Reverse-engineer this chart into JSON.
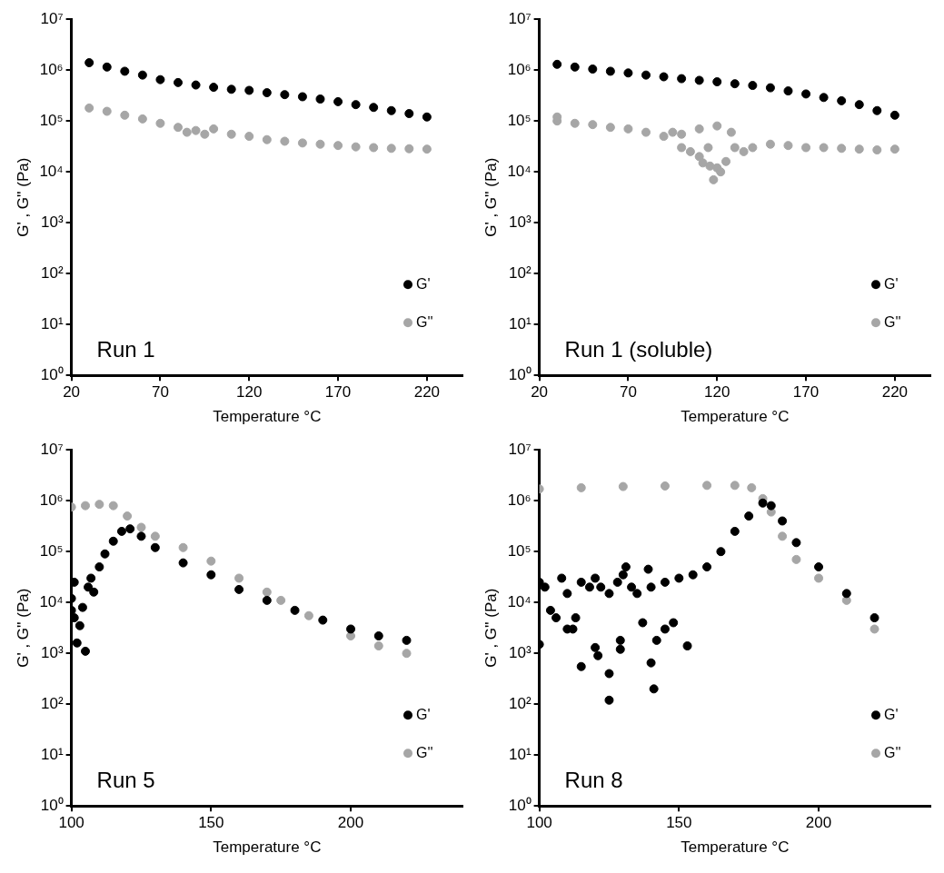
{
  "chart_data": [
    {
      "type": "scatter",
      "xlabel": "Temperature °C",
      "ylabel": "G' , G'' (Pa)",
      "annotations": [
        "Run 1"
      ],
      "log": "y",
      "legend": "bottom right",
      "marker": "circle",
      "xlim": [
        20,
        240
      ],
      "xticks": [
        20,
        70,
        120,
        170,
        220
      ],
      "ylim": [
        1,
        10000000
      ],
      "yticks": [
        {
          "value": 1,
          "label": "10⁰"
        },
        {
          "value": 10,
          "label": "10¹"
        },
        {
          "value": 100,
          "label": "10²"
        },
        {
          "value": 1000,
          "label": "10³"
        },
        {
          "value": 10000,
          "label": "10⁴"
        },
        {
          "value": 100000,
          "label": "10⁵"
        },
        {
          "value": 1000000,
          "label": "10⁶"
        },
        {
          "value": 10000000,
          "label": "10⁷"
        }
      ],
      "series": [
        {
          "name": "G'",
          "color": "#000000",
          "x": [
            30,
            40,
            50,
            60,
            70,
            80,
            90,
            100,
            110,
            120,
            130,
            140,
            150,
            160,
            170,
            180,
            190,
            200,
            210,
            220
          ],
          "values": [
            1400000,
            1150000,
            950000,
            800000,
            650000,
            570000,
            510000,
            460000,
            420000,
            400000,
            360000,
            330000,
            300000,
            270000,
            240000,
            210000,
            185000,
            160000,
            140000,
            120000
          ]
        },
        {
          "name": "G''",
          "color": "#a6a6a6",
          "x": [
            30,
            40,
            50,
            60,
            70,
            80,
            85,
            90,
            95,
            100,
            110,
            120,
            130,
            140,
            150,
            160,
            170,
            180,
            190,
            200,
            210,
            220
          ],
          "values": [
            180000,
            155000,
            130000,
            110000,
            90000,
            75000,
            60000,
            65000,
            55000,
            70000,
            55000,
            50000,
            43000,
            40000,
            37000,
            35000,
            33000,
            31000,
            30000,
            29000,
            28500,
            28000
          ]
        }
      ]
    },
    {
      "type": "scatter",
      "xlabel": "Temperature °C",
      "ylabel": "G' , G'' (Pa)",
      "annotations": [
        "Run 1 (soluble)"
      ],
      "log": "y",
      "legend": "bottom right",
      "marker": "circle",
      "xlim": [
        20,
        240
      ],
      "xticks": [
        20,
        70,
        120,
        170,
        220
      ],
      "ylim": [
        1,
        10000000
      ],
      "yticks": [
        {
          "value": 1,
          "label": "10⁰"
        },
        {
          "value": 10,
          "label": "10¹"
        },
        {
          "value": 100,
          "label": "10²"
        },
        {
          "value": 1000,
          "label": "10³"
        },
        {
          "value": 10000,
          "label": "10⁴"
        },
        {
          "value": 100000,
          "label": "10⁵"
        },
        {
          "value": 1000000,
          "label": "10⁶"
        },
        {
          "value": 10000000,
          "label": "10⁷"
        }
      ],
      "series": [
        {
          "name": "G'",
          "color": "#000000",
          "x": [
            30,
            40,
            50,
            60,
            70,
            80,
            90,
            100,
            110,
            120,
            130,
            140,
            150,
            160,
            170,
            180,
            190,
            200,
            210,
            220
          ],
          "values": [
            1300000,
            1150000,
            1050000,
            950000,
            880000,
            800000,
            740000,
            680000,
            630000,
            590000,
            540000,
            500000,
            450000,
            390000,
            340000,
            290000,
            250000,
            210000,
            160000,
            130000
          ]
        },
        {
          "name": "G''",
          "color": "#a6a6a6",
          "x": [
            30,
            30,
            40,
            50,
            60,
            70,
            80,
            90,
            95,
            100,
            100,
            105,
            110,
            110,
            112,
            115,
            116,
            118,
            120,
            120,
            122,
            125,
            128,
            130,
            135,
            140,
            150,
            160,
            170,
            180,
            190,
            200,
            210,
            220
          ],
          "values": [
            100000,
            120000,
            90000,
            85000,
            75000,
            70000,
            60000,
            50000,
            60000,
            30000,
            55000,
            25000,
            20000,
            70000,
            15000,
            30000,
            13000,
            7000,
            12000,
            80000,
            10000,
            16000,
            60000,
            30000,
            25000,
            30000,
            35000,
            33000,
            30000,
            30000,
            29000,
            28000,
            27000,
            28000
          ]
        }
      ]
    },
    {
      "type": "scatter",
      "xlabel": "Temperature °C",
      "ylabel": "G' , G'' (Pa)",
      "annotations": [
        "Run 5"
      ],
      "log": "y",
      "legend": "bottom right",
      "marker": "circle",
      "xlim": [
        100,
        240
      ],
      "xticks": [
        100,
        150,
        200
      ],
      "ylim": [
        1,
        10000000
      ],
      "yticks": [
        {
          "value": 1,
          "label": "10⁰"
        },
        {
          "value": 10,
          "label": "10¹"
        },
        {
          "value": 100,
          "label": "10²"
        },
        {
          "value": 1000,
          "label": "10³"
        },
        {
          "value": 10000,
          "label": "10⁴"
        },
        {
          "value": 100000,
          "label": "10⁵"
        },
        {
          "value": 1000000,
          "label": "10⁶"
        },
        {
          "value": 10000000,
          "label": "10⁷"
        }
      ],
      "series": [
        {
          "name": "G'",
          "color": "#000000",
          "x": [
            100,
            100,
            101,
            101,
            102,
            103,
            104,
            105,
            106,
            107,
            108,
            110,
            112,
            115,
            118,
            121,
            125,
            130,
            140,
            150,
            160,
            170,
            180,
            190,
            200,
            210,
            220
          ],
          "values": [
            12000,
            7000,
            5000,
            25000,
            1600,
            3500,
            8000,
            1100,
            20000,
            30000,
            16000,
            50000,
            90000,
            160000,
            250000,
            280000,
            200000,
            120000,
            60000,
            35000,
            18000,
            11000,
            7000,
            4500,
            3000,
            2200,
            1800
          ]
        },
        {
          "name": "G''",
          "color": "#a6a6a6",
          "x": [
            100,
            105,
            110,
            115,
            120,
            125,
            130,
            140,
            150,
            160,
            170,
            175,
            185,
            200,
            210,
            220
          ],
          "values": [
            750000,
            800000,
            850000,
            800000,
            500000,
            300000,
            200000,
            120000,
            65000,
            30000,
            16000,
            11000,
            5500,
            2200,
            1400,
            1000
          ]
        }
      ]
    },
    {
      "type": "scatter",
      "xlabel": "Temperature °C",
      "ylabel": "G' , G'' (Pa)",
      "annotations": [
        "Run 8"
      ],
      "log": "y",
      "legend": "bottom right",
      "marker": "circle",
      "xlim": [
        100,
        240
      ],
      "xticks": [
        100,
        150,
        200
      ],
      "ylim": [
        1,
        10000000
      ],
      "yticks": [
        {
          "value": 1,
          "label": "10⁰"
        },
        {
          "value": 10,
          "label": "10¹"
        },
        {
          "value": 100,
          "label": "10²"
        },
        {
          "value": 1000,
          "label": "10³"
        },
        {
          "value": 10000,
          "label": "10⁴"
        },
        {
          "value": 100000,
          "label": "10⁵"
        },
        {
          "value": 1000000,
          "label": "10⁶"
        },
        {
          "value": 10000000,
          "label": "10⁷"
        }
      ],
      "series": [
        {
          "name": "G'",
          "color": "#000000",
          "x": [
            100,
            100,
            102,
            104,
            106,
            108,
            110,
            110,
            112,
            113,
            115,
            115,
            118,
            120,
            120,
            121,
            122,
            125,
            125,
            125,
            128,
            129,
            129,
            130,
            131,
            133,
            135,
            137,
            139,
            140,
            140,
            141,
            142,
            145,
            145,
            148,
            150,
            153,
            155,
            160,
            165,
            170,
            175,
            180,
            183,
            187,
            192,
            200,
            210,
            220
          ],
          "values": [
            1500,
            25000,
            20000,
            7000,
            5000,
            30000,
            3000,
            15000,
            3000,
            5000,
            550,
            25000,
            20000,
            1300,
            30000,
            900,
            20000,
            400,
            120,
            15000,
            25000,
            1200,
            1800,
            35000,
            50000,
            20000,
            15000,
            4000,
            45000,
            650,
            20000,
            200,
            1800,
            3000,
            25000,
            4000,
            30000,
            1400,
            35000,
            50000,
            100000,
            250000,
            500000,
            900000,
            800000,
            400000,
            150000,
            50000,
            15000,
            5000
          ]
        },
        {
          "name": "G''",
          "color": "#a6a6a6",
          "x": [
            100,
            115,
            130,
            145,
            160,
            170,
            176,
            180,
            183,
            187,
            192,
            200,
            210,
            220
          ],
          "values": [
            1700000,
            1800000,
            1900000,
            1950000,
            2000000,
            2000000,
            1800000,
            1100000,
            600000,
            200000,
            70000,
            30000,
            11000,
            3000
          ]
        }
      ]
    }
  ]
}
